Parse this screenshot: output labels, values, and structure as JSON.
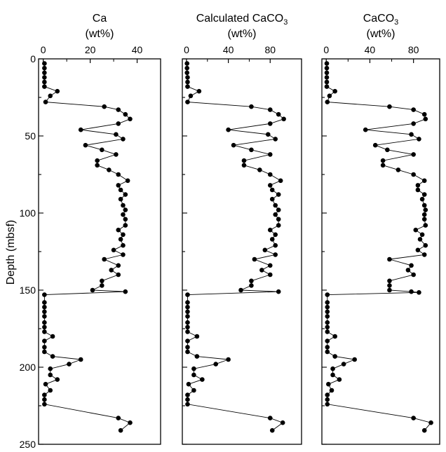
{
  "y_axis": {
    "label": "Depth (mbsf)",
    "ticks": [
      0,
      50,
      100,
      150,
      200,
      250
    ],
    "range": [
      0,
      250
    ],
    "inverted": true
  },
  "chart_data": [
    {
      "type": "scatter",
      "mode": "lines+markers",
      "title_line1": "Ca",
      "title_line2": "(wt%)",
      "x_ticks": [
        0,
        20,
        40
      ],
      "x_minor_ticks": [
        10,
        30
      ],
      "xlim": [
        -2,
        50
      ],
      "ylim": [
        250,
        0
      ],
      "color": "#000000",
      "points": [
        [
          0.5,
          3
        ],
        [
          0.5,
          6
        ],
        [
          0.5,
          9
        ],
        [
          0.5,
          12
        ],
        [
          0.5,
          15
        ],
        [
          0.5,
          18
        ],
        [
          6,
          21
        ],
        [
          3,
          24
        ],
        [
          1,
          28
        ],
        [
          26,
          31
        ],
        [
          32,
          33
        ],
        [
          35,
          36
        ],
        [
          37,
          39
        ],
        [
          32,
          42
        ],
        [
          16,
          46
        ],
        [
          31,
          49
        ],
        [
          34,
          52
        ],
        [
          18,
          56
        ],
        [
          25,
          59
        ],
        [
          31,
          62
        ],
        [
          23,
          66
        ],
        [
          23,
          69
        ],
        [
          28,
          72
        ],
        [
          32,
          75
        ],
        [
          36,
          79
        ],
        [
          32,
          82
        ],
        [
          33,
          85
        ],
        [
          35,
          88
        ],
        [
          33,
          91
        ],
        [
          34,
          95
        ],
        [
          35,
          98
        ],
        [
          34,
          101
        ],
        [
          35,
          104
        ],
        [
          35,
          108
        ],
        [
          32,
          111
        ],
        [
          34,
          114
        ],
        [
          33,
          117
        ],
        [
          34,
          121
        ],
        [
          30,
          124
        ],
        [
          34,
          127
        ],
        [
          26,
          130
        ],
        [
          32,
          134
        ],
        [
          29,
          137
        ],
        [
          32,
          140
        ],
        [
          25,
          144
        ],
        [
          25,
          147
        ],
        [
          21,
          150
        ],
        [
          35,
          151
        ],
        [
          0.5,
          153
        ],
        [
          0.5,
          158
        ],
        [
          0.5,
          161
        ],
        [
          0.5,
          164
        ],
        [
          0.5,
          167
        ],
        [
          0.5,
          171
        ],
        [
          0.5,
          174
        ],
        [
          0.5,
          177
        ],
        [
          4,
          180
        ],
        [
          0.5,
          183
        ],
        [
          0.5,
          187
        ],
        [
          0.5,
          190
        ],
        [
          4,
          193
        ],
        [
          16,
          195
        ],
        [
          11,
          198
        ],
        [
          3,
          201
        ],
        [
          3,
          205
        ],
        [
          6,
          208
        ],
        [
          1,
          211
        ],
        [
          3,
          215
        ],
        [
          0.5,
          218
        ],
        [
          0.5,
          221
        ],
        [
          0.5,
          224
        ],
        [
          32,
          233
        ],
        [
          37,
          236
        ],
        [
          33,
          241
        ]
      ]
    },
    {
      "type": "scatter",
      "mode": "lines+markers",
      "title_line1": "Calculated CaCO",
      "title_sub": "3",
      "title_line2": "(wt%)",
      "x_ticks": [
        0,
        40,
        80
      ],
      "x_minor_ticks": [
        20,
        60
      ],
      "xlim": [
        -4,
        110
      ],
      "ylim": [
        250,
        0
      ],
      "color": "#000000",
      "points": [
        [
          0.5,
          3
        ],
        [
          0.5,
          6
        ],
        [
          0.5,
          9
        ],
        [
          1,
          12
        ],
        [
          1,
          15
        ],
        [
          1,
          18
        ],
        [
          12,
          21
        ],
        [
          4,
          24
        ],
        [
          1,
          28
        ],
        [
          62,
          31
        ],
        [
          80,
          33
        ],
        [
          88,
          36
        ],
        [
          93,
          39
        ],
        [
          80,
          42
        ],
        [
          40,
          46
        ],
        [
          78,
          49
        ],
        [
          85,
          52
        ],
        [
          45,
          56
        ],
        [
          62,
          59
        ],
        [
          80,
          62
        ],
        [
          55,
          66
        ],
        [
          55,
          69
        ],
        [
          70,
          72
        ],
        [
          80,
          75
        ],
        [
          90,
          79
        ],
        [
          80,
          82
        ],
        [
          82,
          85
        ],
        [
          88,
          88
        ],
        [
          82,
          91
        ],
        [
          85,
          95
        ],
        [
          88,
          98
        ],
        [
          85,
          101
        ],
        [
          88,
          104
        ],
        [
          88,
          108
        ],
        [
          80,
          111
        ],
        [
          85,
          114
        ],
        [
          82,
          117
        ],
        [
          85,
          121
        ],
        [
          75,
          124
        ],
        [
          85,
          127
        ],
        [
          65,
          130
        ],
        [
          80,
          134
        ],
        [
          72,
          137
        ],
        [
          80,
          140
        ],
        [
          62,
          144
        ],
        [
          62,
          147
        ],
        [
          52,
          150
        ],
        [
          88,
          151
        ],
        [
          1,
          153
        ],
        [
          1,
          158
        ],
        [
          1,
          161
        ],
        [
          1,
          164
        ],
        [
          1,
          167
        ],
        [
          1,
          171
        ],
        [
          1,
          174
        ],
        [
          1,
          177
        ],
        [
          10,
          180
        ],
        [
          1,
          183
        ],
        [
          1,
          187
        ],
        [
          1,
          190
        ],
        [
          10,
          193
        ],
        [
          40,
          195
        ],
        [
          28,
          198
        ],
        [
          7,
          201
        ],
        [
          7,
          205
        ],
        [
          15,
          208
        ],
        [
          2,
          211
        ],
        [
          7,
          215
        ],
        [
          1,
          218
        ],
        [
          1,
          221
        ],
        [
          1,
          224
        ],
        [
          80,
          233
        ],
        [
          92,
          236
        ],
        [
          82,
          241
        ]
      ]
    },
    {
      "type": "scatter",
      "mode": "lines+markers",
      "title_line1": "CaCO",
      "title_sub": "3",
      "title_line2": "(wt%)",
      "x_ticks": [
        0,
        40,
        80
      ],
      "x_minor_ticks": [
        20,
        60
      ],
      "xlim": [
        -4,
        104
      ],
      "ylim": [
        250,
        0
      ],
      "color": "#000000",
      "points": [
        [
          0.5,
          3
        ],
        [
          0.5,
          6
        ],
        [
          0.5,
          9
        ],
        [
          0.5,
          12
        ],
        [
          0.5,
          15
        ],
        [
          0.5,
          18
        ],
        [
          8,
          21
        ],
        [
          3,
          24
        ],
        [
          1,
          28
        ],
        [
          58,
          31
        ],
        [
          80,
          33
        ],
        [
          90,
          36
        ],
        [
          91,
          39
        ],
        [
          80,
          42
        ],
        [
          36,
          46
        ],
        [
          78,
          49
        ],
        [
          85,
          52
        ],
        [
          45,
          56
        ],
        [
          56,
          59
        ],
        [
          80,
          62
        ],
        [
          52,
          66
        ],
        [
          52,
          69
        ],
        [
          66,
          72
        ],
        [
          80,
          75
        ],
        [
          90,
          79
        ],
        [
          84,
          82
        ],
        [
          84,
          85
        ],
        [
          90,
          88
        ],
        [
          88,
          91
        ],
        [
          90,
          95
        ],
        [
          91,
          98
        ],
        [
          90,
          101
        ],
        [
          90,
          104
        ],
        [
          91,
          108
        ],
        [
          82,
          111
        ],
        [
          88,
          114
        ],
        [
          86,
          117
        ],
        [
          91,
          121
        ],
        [
          84,
          124
        ],
        [
          90,
          127
        ],
        [
          58,
          130
        ],
        [
          78,
          134
        ],
        [
          75,
          137
        ],
        [
          80,
          140
        ],
        [
          58,
          144
        ],
        [
          58,
          147
        ],
        [
          58,
          150
        ],
        [
          78,
          151
        ],
        [
          85,
          151.5
        ],
        [
          1,
          153
        ],
        [
          1,
          158
        ],
        [
          1,
          161
        ],
        [
          1,
          164
        ],
        [
          1,
          167
        ],
        [
          1,
          171
        ],
        [
          1,
          174
        ],
        [
          1,
          177
        ],
        [
          8,
          180
        ],
        [
          1,
          183
        ],
        [
          1,
          187
        ],
        [
          1,
          190
        ],
        [
          8,
          193
        ],
        [
          26,
          195
        ],
        [
          16,
          198
        ],
        [
          6,
          201
        ],
        [
          6,
          205
        ],
        [
          12,
          208
        ],
        [
          2,
          211
        ],
        [
          5,
          215
        ],
        [
          1,
          218
        ],
        [
          1,
          221
        ],
        [
          1,
          224
        ],
        [
          80,
          233
        ],
        [
          96,
          236
        ],
        [
          90,
          241
        ]
      ]
    }
  ]
}
